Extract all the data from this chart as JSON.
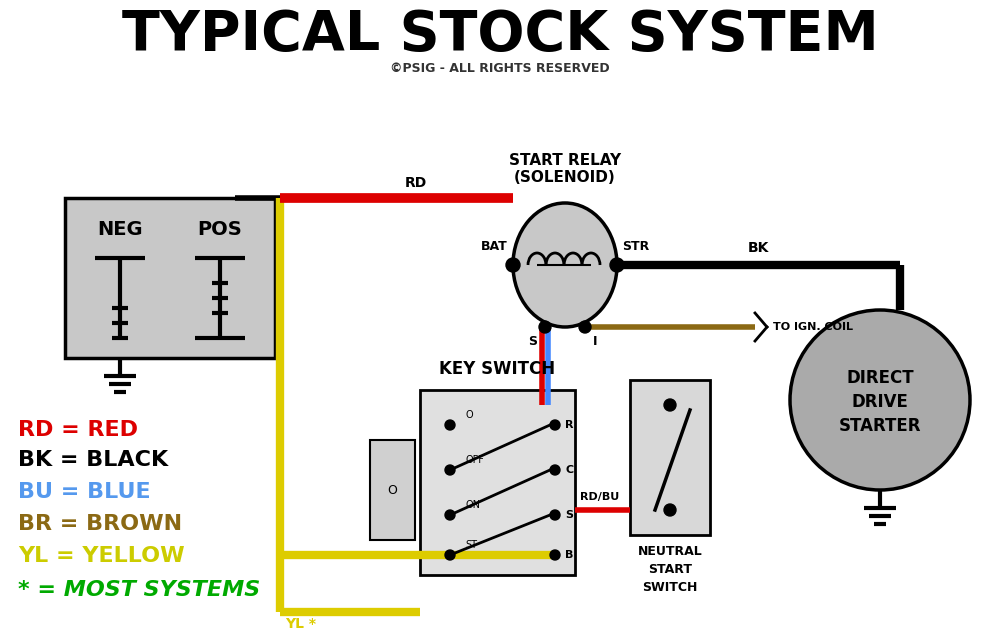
{
  "title": "TYPICAL STOCK SYSTEM",
  "subtitle": "©PSIG - ALL RIGHTS RESERVED",
  "bg_color": "#ffffff",
  "legend_items": [
    {
      "label": "RD = RED",
      "color": "#dd0000",
      "style": "normal"
    },
    {
      "label": "BK = BLACK",
      "color": "#000000",
      "style": "normal"
    },
    {
      "label": "BU = BLUE",
      "color": "#5599ee",
      "style": "normal"
    },
    {
      "label": "BR = BROWN",
      "color": "#8B6914",
      "style": "normal"
    },
    {
      "label": "YL = YELLOW",
      "color": "#cccc00",
      "style": "normal"
    },
    {
      "label": "* = MOST SYSTEMS",
      "color": "#00aa00",
      "style": "italic"
    }
  ],
  "wire_red": "#dd0000",
  "wire_black": "#000000",
  "wire_yellow": "#ddcc00",
  "wire_blue": "#4488ff",
  "wire_brown": "#8B6914",
  "gray_light": "#c8c8c8",
  "gray_dark": "#aaaaaa"
}
